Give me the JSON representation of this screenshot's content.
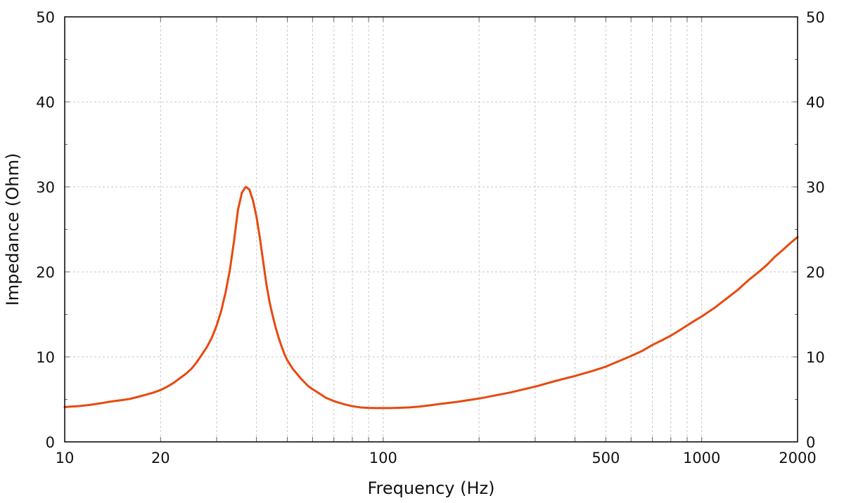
{
  "chart_data": {
    "type": "line",
    "xlabel": "Frequency (Hz)",
    "ylabel": "Impedance (Ohm)",
    "x_scale": "log",
    "xlim": [
      10,
      2000
    ],
    "ylim": [
      0,
      50
    ],
    "x_ticks": [
      {
        "value": 10,
        "label": "10"
      },
      {
        "value": 20,
        "label": "20"
      },
      {
        "value": 100,
        "label": "100"
      },
      {
        "value": 500,
        "label": "500"
      },
      {
        "value": 1000,
        "label": "1000"
      },
      {
        "value": 2000,
        "label": "2000"
      }
    ],
    "y_ticks": [
      {
        "value": 0,
        "label": "0"
      },
      {
        "value": 10,
        "label": "10"
      },
      {
        "value": 20,
        "label": "20"
      },
      {
        "value": 30,
        "label": "30"
      },
      {
        "value": 40,
        "label": "40"
      },
      {
        "value": 50,
        "label": "50"
      }
    ],
    "y_minor_ticks": [
      5,
      15,
      25,
      35,
      45
    ],
    "x_minor_ticks": [
      30,
      40,
      50,
      60,
      70,
      80,
      90,
      200,
      300,
      400,
      600,
      700,
      800,
      900
    ],
    "grid": true,
    "right_axis_labels": true,
    "series": [
      {
        "color": "#e8490f",
        "x": [
          10,
          11,
          12,
          13,
          14,
          15,
          16,
          17,
          18,
          19,
          20,
          21,
          22,
          23,
          24,
          25,
          26,
          27,
          28,
          29,
          30,
          31,
          32,
          33,
          34,
          35,
          36,
          37,
          38,
          39,
          40,
          41,
          42,
          43,
          44,
          45,
          46,
          47,
          48,
          49,
          50,
          52,
          55,
          58,
          60,
          63,
          66,
          70,
          75,
          80,
          85,
          90,
          95,
          100,
          105,
          110,
          120,
          130,
          140,
          150,
          170,
          200,
          250,
          300,
          350,
          400,
          450,
          500,
          550,
          600,
          650,
          700,
          750,
          800,
          850,
          900,
          950,
          1000,
          1100,
          1200,
          1300,
          1400,
          1500,
          1600,
          1700,
          1800,
          1900,
          2000
        ],
        "y": [
          4.1,
          4.2,
          4.35,
          4.55,
          4.75,
          4.9,
          5.05,
          5.3,
          5.55,
          5.8,
          6.1,
          6.5,
          6.95,
          7.5,
          8.0,
          8.6,
          9.4,
          10.3,
          11.2,
          12.3,
          13.7,
          15.4,
          17.6,
          20.2,
          23.6,
          27.3,
          29.3,
          30.0,
          29.7,
          28.4,
          26.5,
          24.0,
          21.2,
          18.5,
          16.4,
          14.8,
          13.4,
          12.2,
          11.2,
          10.3,
          9.6,
          8.6,
          7.5,
          6.6,
          6.2,
          5.7,
          5.2,
          4.8,
          4.45,
          4.2,
          4.05,
          4.0,
          3.98,
          3.98,
          3.98,
          4.0,
          4.05,
          4.15,
          4.3,
          4.45,
          4.7,
          5.1,
          5.8,
          6.5,
          7.2,
          7.75,
          8.3,
          8.85,
          9.5,
          10.1,
          10.7,
          11.4,
          11.95,
          12.5,
          13.1,
          13.7,
          14.25,
          14.75,
          15.8,
          16.9,
          17.9,
          19.0,
          19.9,
          20.8,
          21.8,
          22.6,
          23.4,
          24.1
        ]
      }
    ]
  }
}
